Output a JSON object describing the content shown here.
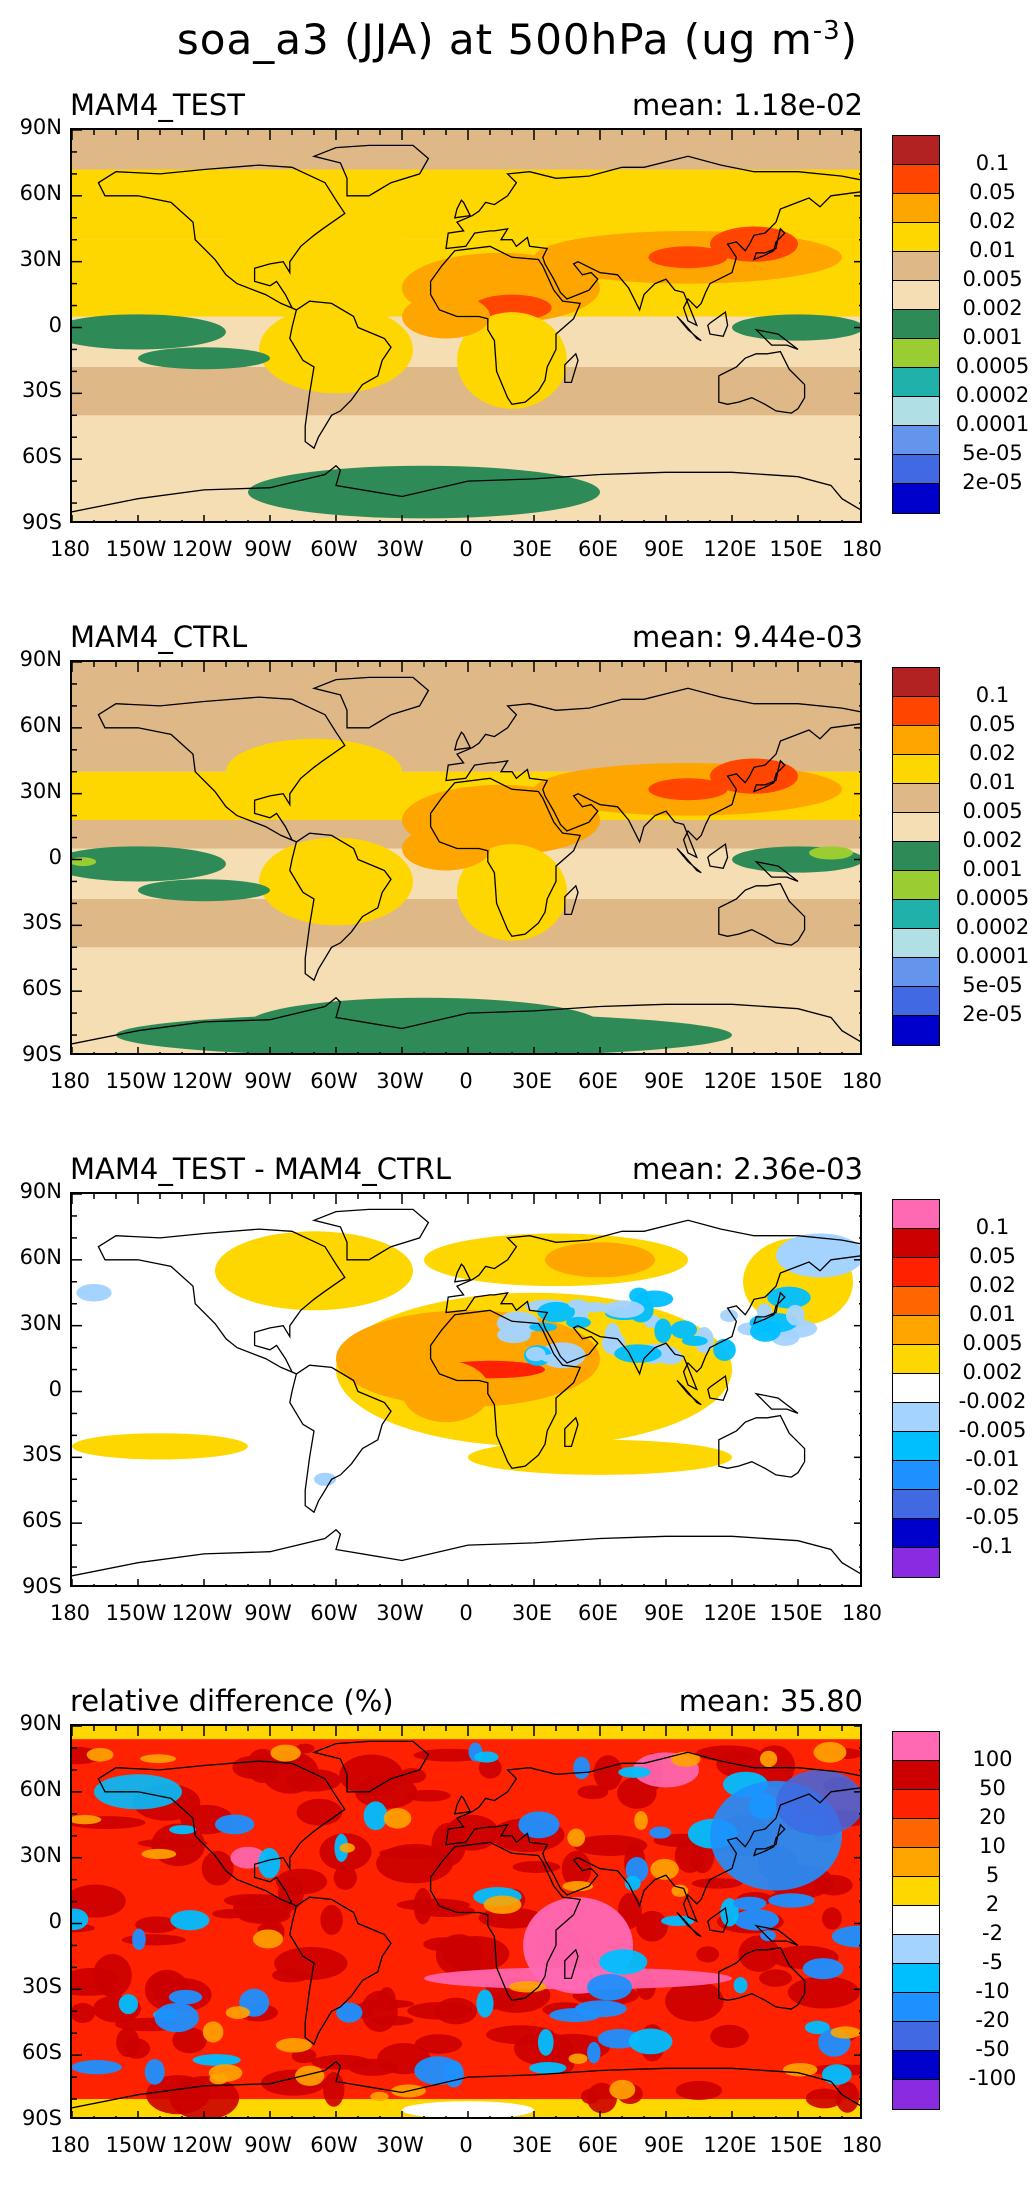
{
  "figure": {
    "title_main": "soa_a3 (JJA) at 500hPa (ug m",
    "title_sup": "-3",
    "title_end": ")"
  },
  "lat_labels": [
    "90N",
    "60N",
    "30N",
    "0",
    "30S",
    "60S",
    "90S"
  ],
  "lon_labels": [
    "180",
    "150W",
    "120W",
    "90W",
    "60W",
    "30W",
    "0",
    "30E",
    "60E",
    "90E",
    "120E",
    "150E",
    "180"
  ],
  "panels": [
    {
      "title": "MAM4_TEST",
      "mean": "mean: 1.18e-02",
      "palette": "abs",
      "colorbar": {
        "labels": [
          "0.1",
          "0.05",
          "0.02",
          "0.01",
          "0.005",
          "0.002",
          "0.001",
          "0.0005",
          "0.0002",
          "0.0001",
          "5e-05",
          "2e-05"
        ],
        "colors": [
          "#b22222",
          "#ff4500",
          "#ffa500",
          "#ffd700",
          "#deb887",
          "#f5deb3",
          "#2e8b57",
          "#9acd32",
          "#20b2aa",
          "#b0e0e6",
          "#6495ed",
          "#4169e1",
          "#0000cd"
        ]
      }
    },
    {
      "title": "MAM4_CTRL",
      "mean": "mean: 9.44e-03",
      "palette": "abs",
      "colorbar": {
        "labels": [
          "0.1",
          "0.05",
          "0.02",
          "0.01",
          "0.005",
          "0.002",
          "0.001",
          "0.0005",
          "0.0002",
          "0.0001",
          "5e-05",
          "2e-05"
        ],
        "colors": [
          "#b22222",
          "#ff4500",
          "#ffa500",
          "#ffd700",
          "#deb887",
          "#f5deb3",
          "#2e8b57",
          "#9acd32",
          "#20b2aa",
          "#b0e0e6",
          "#6495ed",
          "#4169e1",
          "#0000cd"
        ]
      }
    },
    {
      "title": "MAM4_TEST - MAM4_CTRL",
      "mean": "mean: 2.36e-03",
      "palette": "diff",
      "colorbar": {
        "labels": [
          "0.1",
          "0.05",
          "0.02",
          "0.01",
          "0.005",
          "0.002",
          "-0.002",
          "-0.005",
          "-0.01",
          "-0.02",
          "-0.05",
          "-0.1"
        ],
        "colors": [
          "#ff69b4",
          "#cc0000",
          "#ff2200",
          "#ff6600",
          "#ffa500",
          "#ffd700",
          "#ffffff",
          "#a4d3ff",
          "#00bfff",
          "#1e90ff",
          "#4169e1",
          "#0000cd",
          "#8a2be2"
        ]
      }
    },
    {
      "title": "relative difference (%)",
      "mean": "mean: 35.80",
      "palette": "rel",
      "colorbar": {
        "labels": [
          "100",
          "50",
          "20",
          "10",
          "5",
          "2",
          "-2",
          "-5",
          "-10",
          "-20",
          "-50",
          "-100"
        ],
        "colors": [
          "#ff69b4",
          "#cc0000",
          "#ff2200",
          "#ff6600",
          "#ffa500",
          "#ffd700",
          "#ffffff",
          "#a4d3ff",
          "#00bfff",
          "#1e90ff",
          "#4169e1",
          "#0000cd",
          "#8a2be2"
        ]
      }
    }
  ]
}
